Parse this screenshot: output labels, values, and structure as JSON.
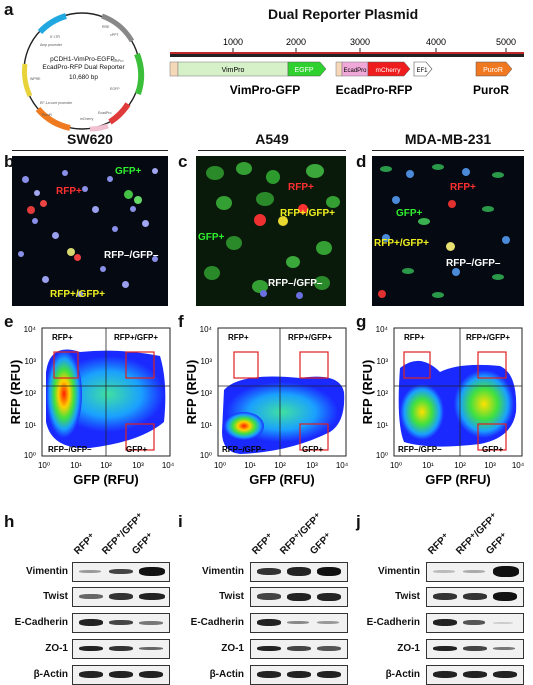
{
  "panels": {
    "a": "a",
    "b": "b",
    "c": "c",
    "d": "d",
    "e": "e",
    "f": "f",
    "g": "g",
    "h": "h",
    "i": "i",
    "j": "j"
  },
  "plasmid_map": {
    "name_line1": "pCDH1-VimPro-EGFP-",
    "name_line2": "EcadPro-RFP Dual Reporter",
    "size": "10,680 bp"
  },
  "linear_map": {
    "title": "Dual Reporter Plasmid",
    "ruler_ticks": [
      "1000",
      "2000",
      "3000",
      "4000",
      "5000"
    ],
    "features": [
      "VimPro",
      "EGFP",
      "EcadPro",
      "mCherry",
      "EF1",
      "PuroR"
    ],
    "labels": [
      "VimPro-GFP",
      "EcadPro-RFP",
      "PuroR"
    ]
  },
  "microscopy": {
    "titles": [
      "SW620",
      "A549",
      "MDA-MB-231"
    ],
    "labels": [
      "RFP+",
      "GFP+",
      "RFP+/GFP+",
      "RFP–/GFP–"
    ]
  },
  "flow": {
    "xlabel": "GFP (RFU)",
    "ylabel": "RFP (RFU)",
    "ticks": [
      "10⁰",
      "10¹",
      "10²",
      "10³",
      "10⁴"
    ],
    "quadrants": [
      "RFP+",
      "RFP+/GFP+",
      "RFP–/GFP–",
      "GFP+"
    ]
  },
  "western": {
    "columns": [
      "RFP⁺",
      "RFP⁺/GFP⁺",
      "GFP⁺"
    ],
    "rows": [
      "Vimentin",
      "Twist",
      "E-Cadherin",
      "ZO-1",
      "β-Actin"
    ]
  }
}
